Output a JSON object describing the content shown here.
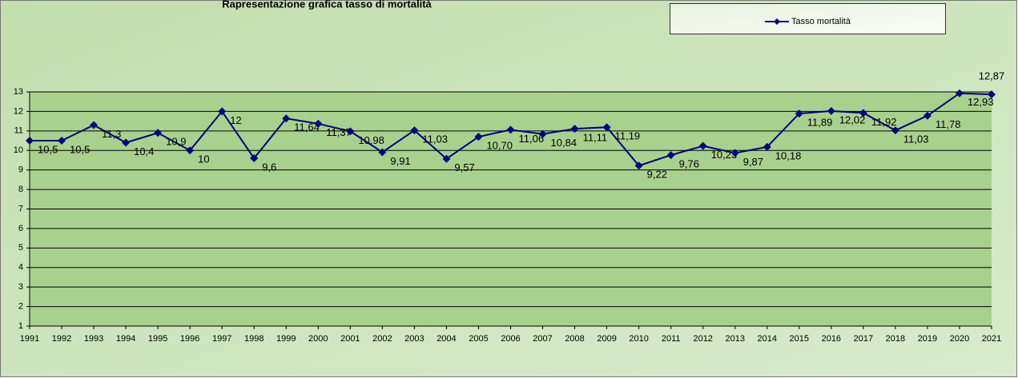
{
  "chart_data": {
    "type": "line",
    "title": "Rapresentazione grafica tasso di mortalità",
    "categories": [
      "1991",
      "1992",
      "1993",
      "1994",
      "1995",
      "1996",
      "1997",
      "1998",
      "1999",
      "2000",
      "2001",
      "2002",
      "2003",
      "2004",
      "2005",
      "2006",
      "2007",
      "2008",
      "2009",
      "2010",
      "2011",
      "2012",
      "2013",
      "2014",
      "2015",
      "2016",
      "2017",
      "2018",
      "2019",
      "2020",
      "2021"
    ],
    "series": [
      {
        "name": "Tasso mortalità",
        "color": "#000080",
        "values": [
          10.5,
          10.5,
          11.3,
          10.4,
          10.9,
          10,
          12,
          9.6,
          11.64,
          11.37,
          10.98,
          9.91,
          11.03,
          9.57,
          10.7,
          11.06,
          10.84,
          11.11,
          11.19,
          9.22,
          9.76,
          10.23,
          9.87,
          10.18,
          11.89,
          12.02,
          11.92,
          11.03,
          11.78,
          12.93,
          12.87
        ],
        "value_labels": [
          "10,5",
          "10,5",
          "11,3",
          "10,4",
          "10,9",
          "10",
          "12",
          "9,6",
          "11,64",
          "11,37",
          "10,98",
          "9,91",
          "11,03",
          "9,57",
          "10,70",
          "11,06",
          "10,84",
          "11,11",
          "11,19",
          "9,22",
          "9,76",
          "10,23",
          "9,87",
          "10,18",
          "11,89",
          "12,02",
          "11,92",
          "11,03",
          "11,78",
          "12,93",
          "12,87"
        ]
      }
    ],
    "ylim": [
      1,
      13
    ],
    "yticks": [
      1,
      2,
      3,
      4,
      5,
      6,
      7,
      8,
      9,
      10,
      11,
      12,
      13
    ],
    "grid": true,
    "legend": "top-right"
  }
}
